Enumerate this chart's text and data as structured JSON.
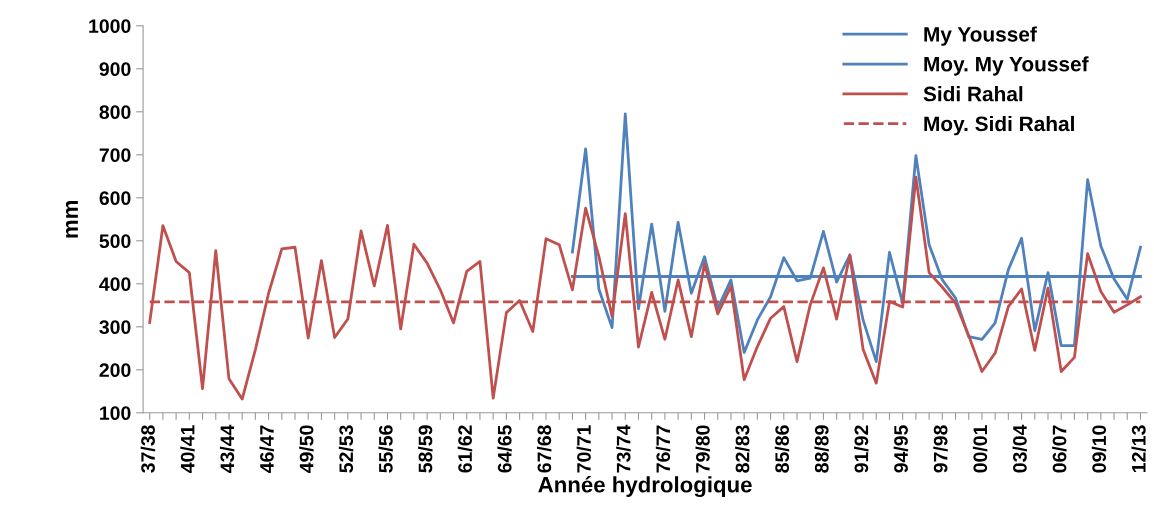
{
  "chart_data": {
    "type": "line",
    "xlabel": "Année hydrologique",
    "ylabel": "mm",
    "categories": [
      "37/38",
      null,
      null,
      "40/41",
      null,
      null,
      "43/44",
      null,
      null,
      "46/47",
      null,
      null,
      "49/50",
      null,
      null,
      "52/53",
      null,
      null,
      "55/56",
      null,
      null,
      "58/59",
      null,
      null,
      "61/62",
      null,
      null,
      "64/65",
      null,
      null,
      "67/68",
      null,
      null,
      "70/71",
      null,
      null,
      "73/74",
      null,
      null,
      "76/77",
      null,
      null,
      "79/80",
      null,
      null,
      "82/83",
      null,
      null,
      "85/86",
      null,
      null,
      "88/89",
      null,
      null,
      "91/92",
      null,
      null,
      "94/95",
      null,
      null,
      "97/98",
      null,
      null,
      "00/01",
      null,
      null,
      "03/04",
      null,
      null,
      "06/07",
      null,
      null,
      "09/10",
      null,
      null,
      "12/13"
    ],
    "series": [
      {
        "name": "My Youssef",
        "color": "#4f81bd",
        "line_style": "solid",
        "values": [
          null,
          null,
          null,
          null,
          null,
          null,
          null,
          null,
          null,
          null,
          null,
          null,
          null,
          null,
          null,
          null,
          null,
          null,
          null,
          null,
          null,
          null,
          null,
          null,
          null,
          null,
          null,
          null,
          null,
          null,
          null,
          null,
          474,
          714,
          388,
          298,
          795,
          342,
          539,
          336,
          543,
          378,
          463,
          343,
          409,
          240,
          316,
          370,
          461,
          407,
          413,
          522,
          404,
          467,
          316,
          219,
          473,
          355,
          698,
          491,
          409,
          367,
          277,
          271,
          309,
          433,
          506,
          291,
          426,
          256,
          256,
          642,
          488,
          411,
          364,
          485
        ]
      },
      {
        "name": "Moy. My Youssef",
        "color": "#4f81bd",
        "line_style": "solid",
        "values": [
          null,
          null,
          null,
          null,
          null,
          null,
          null,
          null,
          null,
          null,
          null,
          null,
          null,
          null,
          null,
          null,
          null,
          null,
          null,
          null,
          null,
          null,
          null,
          null,
          null,
          null,
          null,
          null,
          null,
          null,
          null,
          null,
          417,
          417,
          417,
          417,
          417,
          417,
          417,
          417,
          417,
          417,
          417,
          417,
          417,
          417,
          417,
          417,
          417,
          417,
          417,
          417,
          417,
          417,
          417,
          417,
          417,
          417,
          417,
          417,
          417,
          417,
          417,
          417,
          417,
          417,
          417,
          417,
          417,
          417,
          417,
          417,
          417,
          417,
          417,
          417
        ]
      },
      {
        "name": "Sidi Rahal",
        "color": "#c0504d",
        "line_style": "solid",
        "values": [
          310,
          535,
          452,
          426,
          156,
          477,
          179,
          132,
          247,
          378,
          481,
          485,
          274,
          454,
          275,
          318,
          523,
          395,
          536,
          295,
          492,
          448,
          386,
          309,
          429,
          452,
          134,
          333,
          361,
          289,
          505,
          491,
          386,
          576,
          464,
          324,
          563,
          253,
          380,
          271,
          409,
          277,
          447,
          330,
          394,
          177,
          254,
          320,
          347,
          219,
          351,
          437,
          318,
          467,
          248,
          169,
          359,
          346,
          648,
          426,
          392,
          355,
          279,
          196,
          239,
          347,
          388,
          245,
          390,
          196,
          229,
          470,
          382,
          334,
          351,
          370
        ]
      },
      {
        "name": "Moy. Sidi Rahal",
        "color": "#c0504d",
        "line_style": "dashed",
        "values": [
          358,
          358,
          358,
          358,
          358,
          358,
          358,
          358,
          358,
          358,
          358,
          358,
          358,
          358,
          358,
          358,
          358,
          358,
          358,
          358,
          358,
          358,
          358,
          358,
          358,
          358,
          358,
          358,
          358,
          358,
          358,
          358,
          358,
          358,
          358,
          358,
          358,
          358,
          358,
          358,
          358,
          358,
          358,
          358,
          358,
          358,
          358,
          358,
          358,
          358,
          358,
          358,
          358,
          358,
          358,
          358,
          358,
          358,
          358,
          358,
          358,
          358,
          358,
          358,
          358,
          358,
          358,
          358,
          358,
          358,
          358,
          358,
          358,
          358,
          358,
          358
        ]
      }
    ],
    "ylim": [
      100,
      1000
    ],
    "yticks": [
      100,
      200,
      300,
      400,
      500,
      600,
      700,
      800,
      900,
      1000
    ],
    "grid": false,
    "legend": "top right",
    "marker": "none"
  }
}
